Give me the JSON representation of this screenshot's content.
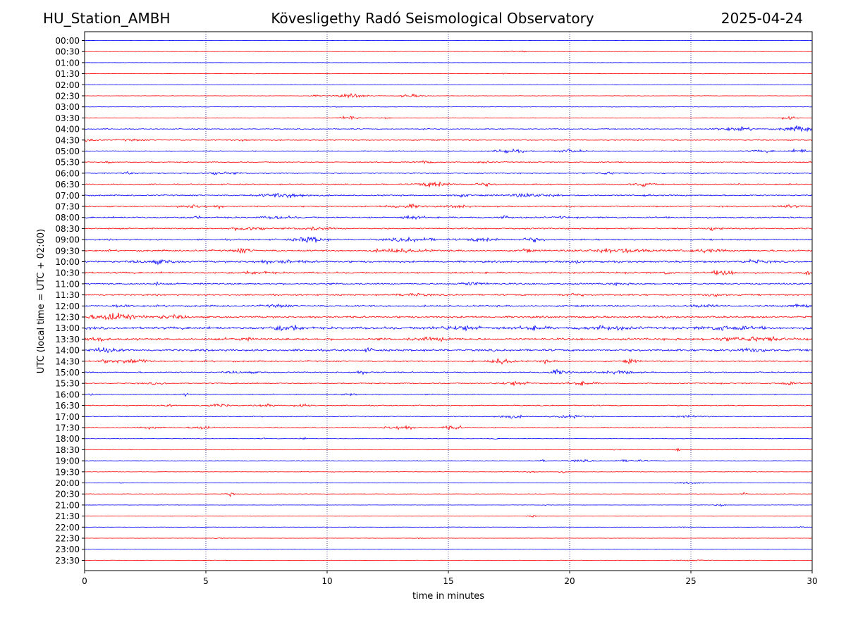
{
  "header": {
    "station": "HU_Station_AMBH",
    "observatory": "Kövesligethy Radó Seismological Observatory",
    "date": "2025-04-24"
  },
  "chart_data": {
    "type": "line",
    "subtype": "helicorder",
    "xlabel": "time in minutes",
    "ylabel": "UTC (local time = UTC + 02:00)",
    "xlim": [
      0,
      30
    ],
    "x_ticks": [
      0,
      5,
      10,
      15,
      20,
      25,
      30
    ],
    "vertical_grid": true,
    "colors": {
      "even_row": "#0000ff",
      "odd_row": "#ff0000"
    },
    "rows": [
      {
        "label": "00:00",
        "noise": 0.3,
        "events": []
      },
      {
        "label": "00:30",
        "noise": 0.4,
        "events": [
          {
            "t": 17.8,
            "amp": 1.2,
            "dur": 1.2
          }
        ]
      },
      {
        "label": "01:00",
        "noise": 0.3,
        "events": []
      },
      {
        "label": "01:30",
        "noise": 0.4,
        "events": [
          {
            "t": 17.3,
            "amp": 1.4,
            "dur": 0.3
          }
        ]
      },
      {
        "label": "02:00",
        "noise": 0.3,
        "events": []
      },
      {
        "label": "02:30",
        "noise": 0.5,
        "events": [
          {
            "t": 11.0,
            "amp": 3.5,
            "dur": 1.6
          },
          {
            "t": 13.5,
            "amp": 3.0,
            "dur": 1.2
          },
          {
            "t": 9.4,
            "amp": 1.5,
            "dur": 0.8
          }
        ]
      },
      {
        "label": "03:00",
        "noise": 0.5,
        "events": [
          {
            "t": 10.3,
            "amp": 1.5,
            "dur": 0.4
          }
        ]
      },
      {
        "label": "03:30",
        "noise": 0.6,
        "events": [
          {
            "t": 10.9,
            "amp": 5.0,
            "dur": 0.8
          },
          {
            "t": 12.4,
            "amp": 1.5,
            "dur": 0.4
          },
          {
            "t": 29.0,
            "amp": 3.5,
            "dur": 0.8
          }
        ]
      },
      {
        "label": "04:00",
        "noise": 1.0,
        "events": [
          {
            "t": 26.8,
            "amp": 3.5,
            "dur": 1.8
          },
          {
            "t": 29.5,
            "amp": 6.0,
            "dur": 1.6
          },
          {
            "t": 14.0,
            "amp": 1.8,
            "dur": 0.4
          }
        ]
      },
      {
        "label": "04:30",
        "noise": 1.1,
        "events": [
          {
            "t": 0.2,
            "amp": 3.0,
            "dur": 0.8
          },
          {
            "t": 2.0,
            "amp": 1.8,
            "dur": 1.0
          },
          {
            "t": 6.5,
            "amp": 1.5,
            "dur": 0.8
          }
        ]
      },
      {
        "label": "05:00",
        "noise": 1.0,
        "events": [
          {
            "t": 17.5,
            "amp": 3.5,
            "dur": 1.4
          },
          {
            "t": 20.0,
            "amp": 3.5,
            "dur": 1.2
          },
          {
            "t": 29.5,
            "amp": 4.0,
            "dur": 0.8
          },
          {
            "t": 28.0,
            "amp": 2.0,
            "dur": 1.2
          }
        ]
      },
      {
        "label": "05:30",
        "noise": 1.1,
        "events": [
          {
            "t": 14.0,
            "amp": 3.0,
            "dur": 0.8
          },
          {
            "t": 1.0,
            "amp": 2.0,
            "dur": 0.4
          },
          {
            "t": 16.5,
            "amp": 2.0,
            "dur": 0.6
          }
        ]
      },
      {
        "label": "06:00",
        "noise": 1.2,
        "events": [
          {
            "t": 1.8,
            "amp": 3.0,
            "dur": 0.4
          },
          {
            "t": 5.5,
            "amp": 3.0,
            "dur": 1.4
          },
          {
            "t": 21.5,
            "amp": 2.5,
            "dur": 1.0
          }
        ]
      },
      {
        "label": "06:30",
        "noise": 1.3,
        "events": [
          {
            "t": 14.5,
            "amp": 6.0,
            "dur": 1.4
          },
          {
            "t": 23.0,
            "amp": 4.5,
            "dur": 0.8
          },
          {
            "t": 16.5,
            "amp": 2.5,
            "dur": 1.0
          },
          {
            "t": 27.0,
            "amp": 2.0,
            "dur": 0.4
          }
        ]
      },
      {
        "label": "07:00",
        "noise": 1.4,
        "events": [
          {
            "t": 8.3,
            "amp": 4.5,
            "dur": 2.2
          },
          {
            "t": 18.5,
            "amp": 4.0,
            "dur": 2.2
          },
          {
            "t": 15.5,
            "amp": 2.5,
            "dur": 1.0
          },
          {
            "t": 23.2,
            "amp": 3.0,
            "dur": 0.4
          }
        ]
      },
      {
        "label": "07:30",
        "noise": 1.4,
        "events": [
          {
            "t": 13.2,
            "amp": 4.0,
            "dur": 1.6
          },
          {
            "t": 4.5,
            "amp": 3.0,
            "dur": 1.2
          },
          {
            "t": 5.6,
            "amp": 3.0,
            "dur": 0.4
          },
          {
            "t": 15.5,
            "amp": 2.5,
            "dur": 1.0
          },
          {
            "t": 29.0,
            "amp": 2.5,
            "dur": 1.0
          }
        ]
      },
      {
        "label": "08:00",
        "noise": 1.6,
        "events": [
          {
            "t": 4.5,
            "amp": 3.0,
            "dur": 0.6
          },
          {
            "t": 8.0,
            "amp": 3.0,
            "dur": 1.2
          },
          {
            "t": 13.5,
            "amp": 3.0,
            "dur": 1.0
          },
          {
            "t": 17.3,
            "amp": 2.5,
            "dur": 0.6
          },
          {
            "t": 19.7,
            "amp": 2.5,
            "dur": 0.4
          }
        ]
      },
      {
        "label": "08:30",
        "noise": 1.5,
        "events": [
          {
            "t": 6.8,
            "amp": 6.0,
            "dur": 1.2
          },
          {
            "t": 26.0,
            "amp": 4.0,
            "dur": 0.6
          },
          {
            "t": 9.5,
            "amp": 2.5,
            "dur": 1.6
          }
        ]
      },
      {
        "label": "09:00",
        "noise": 1.7,
        "events": [
          {
            "t": 9.3,
            "amp": 7.0,
            "dur": 1.2
          },
          {
            "t": 13.5,
            "amp": 3.5,
            "dur": 2.2
          },
          {
            "t": 16.5,
            "amp": 3.5,
            "dur": 1.6
          },
          {
            "t": 18.5,
            "amp": 3.5,
            "dur": 1.0
          }
        ]
      },
      {
        "label": "09:30",
        "noise": 1.8,
        "events": [
          {
            "t": 6.5,
            "amp": 4.0,
            "dur": 0.8
          },
          {
            "t": 13.0,
            "amp": 3.5,
            "dur": 2.2
          },
          {
            "t": 18.2,
            "amp": 4.0,
            "dur": 0.4
          },
          {
            "t": 22.0,
            "amp": 4.5,
            "dur": 2.8
          },
          {
            "t": 25.5,
            "amp": 3.0,
            "dur": 1.6
          }
        ]
      },
      {
        "label": "10:00",
        "noise": 2.0,
        "events": [
          {
            "t": 3.0,
            "amp": 3.5,
            "dur": 1.6
          },
          {
            "t": 8.0,
            "amp": 3.0,
            "dur": 2.0
          },
          {
            "t": 27.5,
            "amp": 3.0,
            "dur": 1.2
          },
          {
            "t": 20.2,
            "amp": 2.5,
            "dur": 0.8
          }
        ]
      },
      {
        "label": "10:30",
        "noise": 1.8,
        "events": [
          {
            "t": 26.4,
            "amp": 6.0,
            "dur": 0.9
          },
          {
            "t": 24.0,
            "amp": 3.0,
            "dur": 0.4
          },
          {
            "t": 7.0,
            "amp": 2.0,
            "dur": 1.6
          },
          {
            "t": 29.8,
            "amp": 3.0,
            "dur": 0.4
          }
        ]
      },
      {
        "label": "11:00",
        "noise": 1.6,
        "events": [
          {
            "t": 16.0,
            "amp": 3.5,
            "dur": 1.2
          },
          {
            "t": 3.0,
            "amp": 2.5,
            "dur": 0.4
          },
          {
            "t": 22.0,
            "amp": 2.0,
            "dur": 1.0
          }
        ]
      },
      {
        "label": "11:30",
        "noise": 1.7,
        "events": [
          {
            "t": 13.5,
            "amp": 3.0,
            "dur": 1.4
          },
          {
            "t": 20.0,
            "amp": 2.5,
            "dur": 1.0
          },
          {
            "t": 26.0,
            "amp": 2.5,
            "dur": 1.0
          }
        ]
      },
      {
        "label": "12:00",
        "noise": 1.8,
        "events": [
          {
            "t": 1.5,
            "amp": 2.5,
            "dur": 0.8
          },
          {
            "t": 8.0,
            "amp": 2.5,
            "dur": 1.0
          },
          {
            "t": 29.5,
            "amp": 3.5,
            "dur": 1.0
          },
          {
            "t": 25.5,
            "amp": 2.5,
            "dur": 1.2
          }
        ]
      },
      {
        "label": "12:30",
        "noise": 2.0,
        "events": [
          {
            "t": 1.2,
            "amp": 7.5,
            "dur": 2.0
          },
          {
            "t": 3.5,
            "amp": 3.0,
            "dur": 1.6
          }
        ]
      },
      {
        "label": "13:00",
        "noise": 2.6,
        "events": [
          {
            "t": 8.3,
            "amp": 6.0,
            "dur": 1.2
          },
          {
            "t": 15.5,
            "amp": 4.0,
            "dur": 2.2
          },
          {
            "t": 21.5,
            "amp": 3.0,
            "dur": 2.0
          },
          {
            "t": 26.5,
            "amp": 4.0,
            "dur": 2.2
          },
          {
            "t": 18.5,
            "amp": 3.0,
            "dur": 1.2
          }
        ]
      },
      {
        "label": "13:30",
        "noise": 2.2,
        "events": [
          {
            "t": 0.5,
            "amp": 4.5,
            "dur": 0.8
          },
          {
            "t": 27.5,
            "amp": 4.0,
            "dur": 3.2
          },
          {
            "t": 14.5,
            "amp": 3.0,
            "dur": 2.0
          },
          {
            "t": 6.5,
            "amp": 2.5,
            "dur": 1.0
          }
        ]
      },
      {
        "label": "14:00",
        "noise": 2.2,
        "events": [
          {
            "t": 0.8,
            "amp": 3.5,
            "dur": 1.2
          },
          {
            "t": 11.7,
            "amp": 4.0,
            "dur": 0.3
          },
          {
            "t": 27.5,
            "amp": 3.0,
            "dur": 1.4
          }
        ]
      },
      {
        "label": "14:30",
        "noise": 1.6,
        "events": [
          {
            "t": 2.0,
            "amp": 4.5,
            "dur": 1.6
          },
          {
            "t": 17.2,
            "amp": 5.5,
            "dur": 1.0
          },
          {
            "t": 22.5,
            "amp": 3.5,
            "dur": 0.6
          },
          {
            "t": 0.8,
            "amp": 3.0,
            "dur": 0.4
          },
          {
            "t": 19.0,
            "amp": 2.5,
            "dur": 0.6
          }
        ]
      },
      {
        "label": "15:00",
        "noise": 1.3,
        "events": [
          {
            "t": 19.5,
            "amp": 4.5,
            "dur": 1.2
          },
          {
            "t": 22.0,
            "amp": 3.5,
            "dur": 1.4
          },
          {
            "t": 6.5,
            "amp": 2.5,
            "dur": 1.2
          },
          {
            "t": 11.5,
            "amp": 2.5,
            "dur": 1.0
          }
        ]
      },
      {
        "label": "15:30",
        "noise": 1.3,
        "events": [
          {
            "t": 17.8,
            "amp": 4.0,
            "dur": 1.4
          },
          {
            "t": 20.5,
            "amp": 3.5,
            "dur": 1.2
          },
          {
            "t": 29.0,
            "amp": 3.5,
            "dur": 0.8
          },
          {
            "t": 3.0,
            "amp": 2.0,
            "dur": 0.8
          }
        ]
      },
      {
        "label": "16:00",
        "noise": 1.0,
        "events": [
          {
            "t": 0.3,
            "amp": 2.5,
            "dur": 0.4
          },
          {
            "t": 4.2,
            "amp": 2.5,
            "dur": 0.4
          },
          {
            "t": 11.0,
            "amp": 2.0,
            "dur": 1.0
          }
        ]
      },
      {
        "label": "16:30",
        "noise": 1.1,
        "events": [
          {
            "t": 5.5,
            "amp": 3.0,
            "dur": 1.2
          },
          {
            "t": 7.5,
            "amp": 4.5,
            "dur": 0.6
          },
          {
            "t": 9.0,
            "amp": 2.5,
            "dur": 1.0
          },
          {
            "t": 3.5,
            "amp": 1.5,
            "dur": 0.6
          }
        ]
      },
      {
        "label": "17:00",
        "noise": 0.9,
        "events": [
          {
            "t": 17.5,
            "amp": 4.0,
            "dur": 1.2
          },
          {
            "t": 20.0,
            "amp": 3.0,
            "dur": 1.4
          },
          {
            "t": 25.0,
            "amp": 2.0,
            "dur": 1.0
          }
        ]
      },
      {
        "label": "17:30",
        "noise": 1.0,
        "events": [
          {
            "t": 4.8,
            "amp": 4.0,
            "dur": 0.8
          },
          {
            "t": 13.0,
            "amp": 4.0,
            "dur": 1.4
          },
          {
            "t": 15.2,
            "amp": 3.5,
            "dur": 1.0
          },
          {
            "t": 2.8,
            "amp": 2.0,
            "dur": 1.0
          }
        ]
      },
      {
        "label": "18:00",
        "noise": 0.5,
        "events": [
          {
            "t": 9.0,
            "amp": 2.5,
            "dur": 0.3
          },
          {
            "t": 7.4,
            "amp": 1.5,
            "dur": 0.2
          },
          {
            "t": 17.0,
            "amp": 1.2,
            "dur": 0.4
          }
        ]
      },
      {
        "label": "18:30",
        "noise": 0.5,
        "events": [
          {
            "t": 24.5,
            "amp": 3.5,
            "dur": 0.3
          },
          {
            "t": 22.0,
            "amp": 1.2,
            "dur": 0.6
          }
        ]
      },
      {
        "label": "19:00",
        "noise": 0.6,
        "events": [
          {
            "t": 18.9,
            "amp": 3.5,
            "dur": 0.2
          },
          {
            "t": 20.5,
            "amp": 2.5,
            "dur": 1.2
          },
          {
            "t": 22.5,
            "amp": 2.5,
            "dur": 1.2
          }
        ]
      },
      {
        "label": "19:30",
        "noise": 0.5,
        "events": [
          {
            "t": 19.7,
            "amp": 3.0,
            "dur": 0.3
          },
          {
            "t": 18.5,
            "amp": 1.5,
            "dur": 0.8
          }
        ]
      },
      {
        "label": "20:00",
        "noise": 0.5,
        "events": [
          {
            "t": 25.0,
            "amp": 1.5,
            "dur": 1.2
          },
          {
            "t": 1.5,
            "amp": 1.2,
            "dur": 0.3
          },
          {
            "t": 9.5,
            "amp": 1.2,
            "dur": 0.3
          }
        ]
      },
      {
        "label": "20:30",
        "noise": 0.5,
        "events": [
          {
            "t": 6.0,
            "amp": 5.0,
            "dur": 0.3
          },
          {
            "t": 27.2,
            "amp": 2.5,
            "dur": 0.3
          }
        ]
      },
      {
        "label": "21:00",
        "noise": 0.4,
        "events": [
          {
            "t": 26.2,
            "amp": 2.5,
            "dur": 0.4
          },
          {
            "t": 19.0,
            "amp": 1.2,
            "dur": 0.4
          }
        ]
      },
      {
        "label": "21:30",
        "noise": 0.4,
        "events": [
          {
            "t": 18.5,
            "amp": 2.0,
            "dur": 0.5
          },
          {
            "t": 4.5,
            "amp": 1.0,
            "dur": 0.3
          }
        ]
      },
      {
        "label": "22:00",
        "noise": 0.4,
        "events": [
          {
            "t": 24.7,
            "amp": 1.5,
            "dur": 0.3
          },
          {
            "t": 29.5,
            "amp": 1.2,
            "dur": 0.3
          }
        ]
      },
      {
        "label": "22:30",
        "noise": 0.4,
        "events": [
          {
            "t": 5.5,
            "amp": 1.2,
            "dur": 0.4
          },
          {
            "t": 13.8,
            "amp": 1.2,
            "dur": 0.3
          }
        ]
      },
      {
        "label": "23:00",
        "noise": 0.3,
        "events": []
      },
      {
        "label": "23:30",
        "noise": 0.4,
        "events": [
          {
            "t": 25.0,
            "amp": 1.5,
            "dur": 1.4
          }
        ]
      }
    ]
  }
}
